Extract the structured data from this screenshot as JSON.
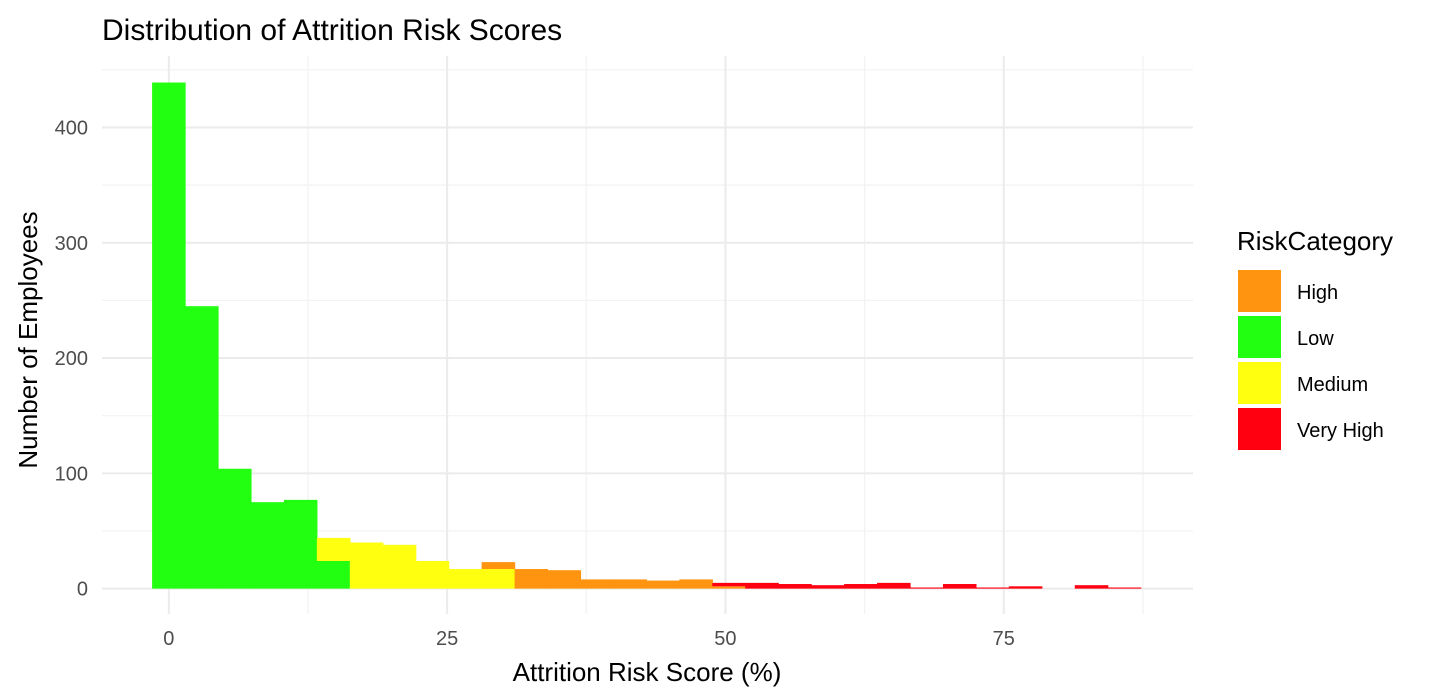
{
  "chart_data": {
    "type": "bar",
    "title": "Distribution of Attrition Risk Scores",
    "xlabel": "Attrition Risk Score (%)",
    "ylabel": "Number of Employees",
    "xlim": [
      -6,
      92
    ],
    "ylim": [
      -22,
      462
    ],
    "x_ticks": [
      0,
      25,
      50,
      75
    ],
    "y_ticks": [
      0,
      100,
      200,
      300,
      400
    ],
    "grid": true,
    "legend": {
      "title": "RiskCategory",
      "position": "right",
      "items": [
        {
          "label": "High",
          "color": "#FF9410"
        },
        {
          "label": "Low",
          "color": "#22FF10"
        },
        {
          "label": "Medium",
          "color": "#FFFF10"
        },
        {
          "label": "Very High",
          "color": "#FF0010"
        }
      ]
    },
    "bin_width": 2.96,
    "series": [
      {
        "name": "Low",
        "color": "#22FF10",
        "bins": [
          [
            -1.5,
            439
          ],
          [
            1.46,
            245
          ],
          [
            4.42,
            104
          ],
          [
            7.38,
            75
          ],
          [
            10.34,
            77
          ],
          [
            13.3,
            24
          ]
        ]
      },
      {
        "name": "Medium",
        "color": "#FFFF10",
        "bins": [
          [
            13.3,
            20
          ],
          [
            16.26,
            40
          ],
          [
            19.22,
            38
          ],
          [
            22.18,
            24
          ],
          [
            25.14,
            17
          ],
          [
            28.1,
            17
          ]
        ]
      },
      {
        "name": "High",
        "color": "#FF9410",
        "bins": [
          [
            28.1,
            6
          ],
          [
            31.06,
            17
          ],
          [
            34.02,
            16
          ],
          [
            36.98,
            8
          ],
          [
            39.94,
            8
          ],
          [
            42.9,
            7
          ],
          [
            45.86,
            8
          ],
          [
            48.82,
            2
          ]
        ]
      },
      {
        "name": "Very High",
        "color": "#FF0010",
        "bins": [
          [
            48.82,
            3
          ],
          [
            51.78,
            5
          ],
          [
            54.74,
            4
          ],
          [
            57.7,
            3
          ],
          [
            60.66,
            4
          ],
          [
            63.62,
            5
          ],
          [
            66.58,
            1
          ],
          [
            69.54,
            4
          ],
          [
            72.5,
            1
          ],
          [
            75.46,
            2
          ],
          [
            81.38,
            3
          ],
          [
            84.34,
            1
          ]
        ]
      }
    ]
  }
}
